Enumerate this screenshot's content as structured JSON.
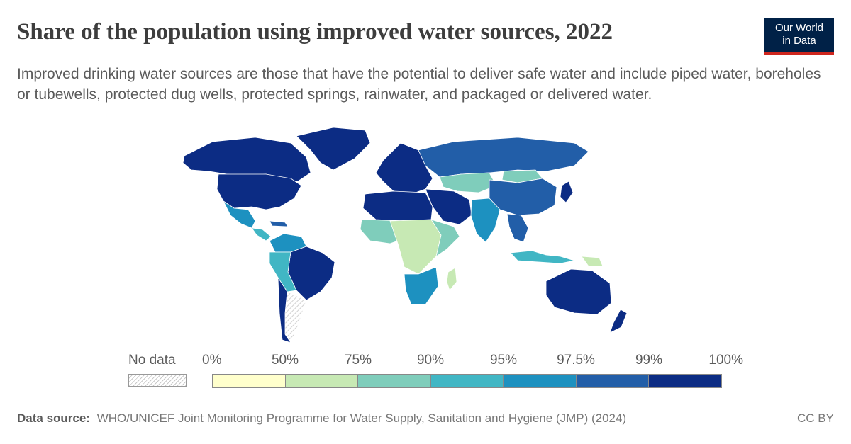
{
  "header": {
    "title": "Share of the population using improved water sources, 2022",
    "subtitle": "Improved drinking water sources are those that have the potential to deliver safe water and include piped water, boreholes or tubewells, protected dug wells, protected springs, rainwater, and packaged or delivered water."
  },
  "logo": {
    "line1": "Our World",
    "line2": "in Data",
    "bg_color": "#002147",
    "accent_color": "#ce261e"
  },
  "legend": {
    "no_data_label": "No data",
    "ticks": [
      "0%",
      "50%",
      "75%",
      "90%",
      "95%",
      "97.5%",
      "99%",
      "100%"
    ],
    "colors": [
      "#ffffcc",
      "#c7e9b4",
      "#7fcdbb",
      "#41b6c4",
      "#1d91c0",
      "#225ea8",
      "#0c2c84"
    ]
  },
  "footer": {
    "source_label": "Data source:",
    "source_text": "WHO/UNICEF Joint Monitoring Programme for Water Supply, Sanitation and Hygiene (JMP) (2024)",
    "license": "CC BY"
  }
}
